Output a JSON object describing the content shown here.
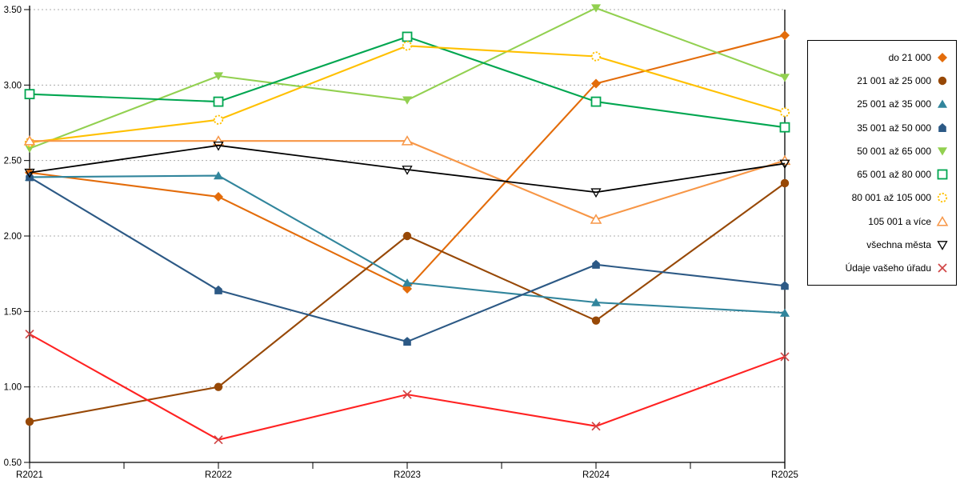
{
  "chart_data": {
    "type": "line",
    "title": "",
    "xlabel": "",
    "ylabel": "",
    "categories": [
      "R2021",
      "R2022",
      "R2023",
      "R2024",
      "R2025"
    ],
    "ylim": [
      0.5,
      3.5
    ],
    "ytick_labels": [
      "0.50",
      "1.00",
      "1.50",
      "2.00",
      "2.50",
      "3.00",
      "3.50"
    ],
    "grid": "horizontal-dotted",
    "legend_position": "right",
    "series": [
      {
        "name": "do 21 000",
        "color": "#E36C0A",
        "marker": "diamond",
        "values": [
          2.42,
          2.26,
          1.65,
          3.01,
          3.33
        ]
      },
      {
        "name": "21 001 až 25 000",
        "color": "#974806",
        "marker": "circle",
        "values": [
          0.77,
          1.0,
          2.0,
          1.44,
          2.35
        ]
      },
      {
        "name": "25 001 až 35 000",
        "color": "#31859C",
        "marker": "triangle",
        "values": [
          2.39,
          2.4,
          1.69,
          1.56,
          1.49
        ]
      },
      {
        "name": "35 001 až 50 000",
        "color": "#2C5985",
        "marker": "pentagon",
        "values": [
          2.39,
          1.64,
          1.3,
          1.81,
          1.67
        ]
      },
      {
        "name": "50 001 až 65 000",
        "color": "#92D050",
        "marker": "triangle-down",
        "values": [
          2.58,
          3.06,
          2.9,
          3.51,
          3.05
        ]
      },
      {
        "name": "65 001 až 80 000",
        "color": "#00A650",
        "marker": "square-open",
        "values": [
          2.94,
          2.89,
          3.32,
          2.89,
          2.72
        ]
      },
      {
        "name": "80 001 až 105 000",
        "color": "#FFC000",
        "marker": "circle-open-dashed",
        "values": [
          2.62,
          2.77,
          3.26,
          3.19,
          2.82
        ]
      },
      {
        "name": "105 001 a více",
        "color": "#F79646",
        "marker": "triangle-open",
        "values": [
          2.63,
          2.63,
          2.63,
          2.11,
          2.5
        ]
      },
      {
        "name": "všechna města",
        "color": "#000000",
        "marker": "triangle-down-open",
        "values": [
          2.42,
          2.6,
          2.44,
          2.29,
          2.48
        ]
      },
      {
        "name": "Údaje vašeho úřadu",
        "color": "#FF2222",
        "marker": "x",
        "marker_color": "#D04545",
        "values": [
          1.35,
          0.65,
          0.95,
          0.74,
          1.2
        ]
      }
    ]
  }
}
